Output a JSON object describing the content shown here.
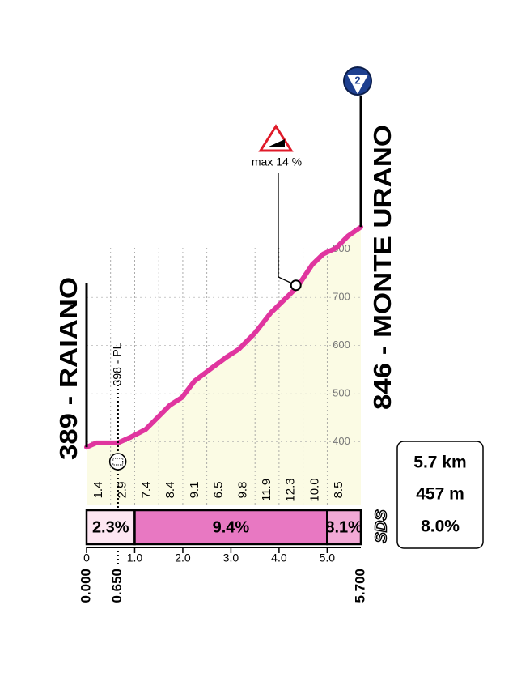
{
  "chart_data": {
    "type": "line",
    "start_name": "389 - RAIANO",
    "finish_name": "846 - MONTE URANO",
    "finish_badge": "2",
    "x": [
      0,
      0.2,
      0.65,
      0.9,
      1.23,
      1.73,
      1.98,
      2.24,
      2.57,
      2.91,
      3.16,
      3.5,
      3.83,
      4.17,
      4.39,
      4.69,
      4.92,
      5.18,
      5.43,
      5.7
    ],
    "values": [
      389,
      398,
      398,
      409,
      426,
      476,
      492,
      526,
      551,
      576,
      592,
      626,
      668,
      701,
      723,
      768,
      790,
      802,
      827,
      846
    ],
    "color": "#e0359f",
    "fill": "#fbfbe4",
    "xlim": [
      0,
      5.7
    ],
    "ylim": [
      270,
      870
    ],
    "xticks": [
      0,
      {
        "value": 1,
        "label": "1.0"
      },
      {
        "value": 2,
        "label": "2.0"
      },
      {
        "value": 3,
        "label": "3.0"
      },
      {
        "value": 4,
        "label": "4.0"
      },
      {
        "value": 5,
        "label": "5.0"
      }
    ],
    "yticks": [
      400,
      500,
      600,
      700,
      800
    ],
    "distance_marks": [
      {
        "value": 0,
        "label": "0.000"
      },
      {
        "value": 0.65,
        "label": "0.650"
      },
      {
        "value": 5.7,
        "label": "5.700"
      }
    ],
    "gradients": [
      1.4,
      2.9,
      7.4,
      8.4,
      9.1,
      6.5,
      9.8,
      11.9,
      12.3,
      {
        "value": 10,
        "label": "10.0"
      },
      8.5
    ],
    "gradient_step": 0.5,
    "segments": [
      {
        "start": 0,
        "end": 1,
        "label": "2.3%",
        "color": "#fde6f2"
      },
      {
        "start": 1,
        "end": 5,
        "label": "9.4%",
        "color": "#e878c2"
      },
      {
        "start": 5,
        "end": 5.7,
        "label": "8.1%",
        "color": "#f2a9d6"
      }
    ],
    "pl_marker": {
      "x": 0.65,
      "label": "398 - PL"
    },
    "max_marker": {
      "x": 4.35,
      "y": 725,
      "label": "max 14 %"
    },
    "summary": [
      "5.7 km",
      "457 m",
      "8.0%"
    ],
    "logo": "SDS"
  }
}
